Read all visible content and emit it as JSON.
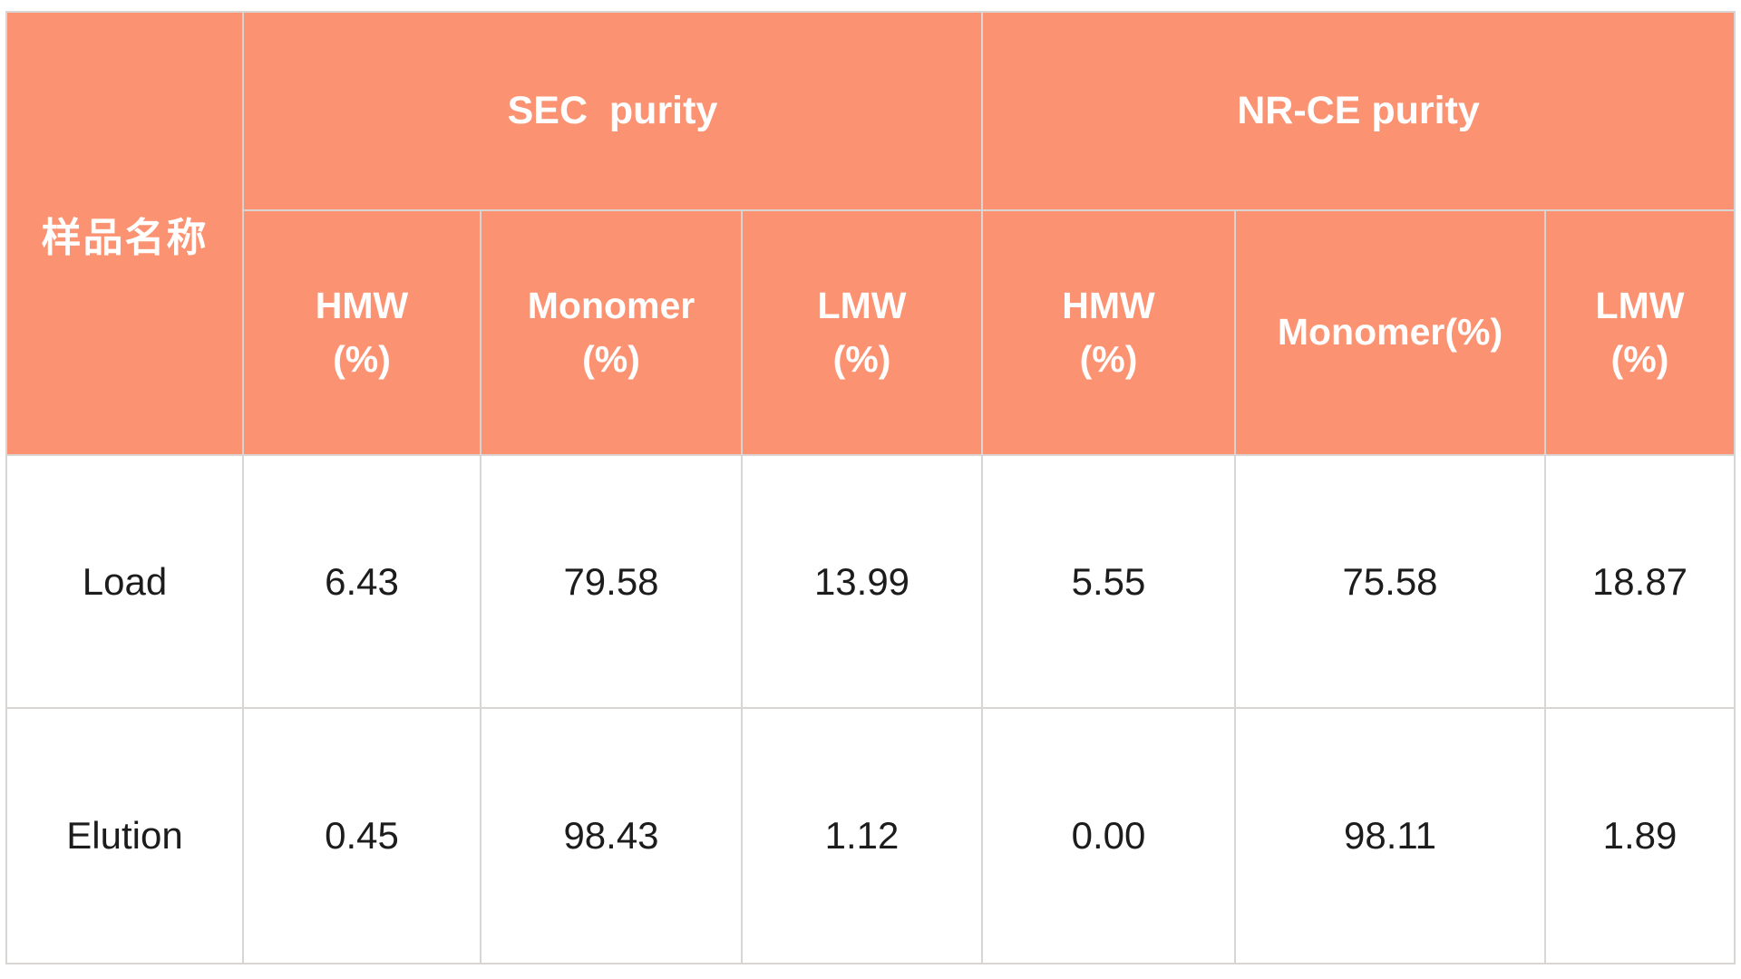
{
  "chart_data": {
    "type": "table",
    "corner_header": "样品名称",
    "column_groups": [
      {
        "label": "SEC  purity",
        "span": 3
      },
      {
        "label": "NR-CE purity",
        "span": 3
      }
    ],
    "columns": [
      "HMW\n(%)",
      "Monomer\n(%)",
      "LMW\n(%)",
      "HMW\n(%)",
      "Monomer(%)",
      "LMW\n(%)"
    ],
    "rows": [
      {
        "name": "Load",
        "values": [
          "6.43",
          "79.58",
          "13.99",
          "5.55",
          "75.58",
          "18.87"
        ]
      },
      {
        "name": "Elution",
        "values": [
          "0.45",
          "98.43",
          "1.12",
          "0.00",
          "98.11",
          "1.89"
        ]
      }
    ],
    "layout_hints": {
      "header_rows": 2,
      "grid_on": true
    },
    "colors": {
      "header_bg": "#FB9372",
      "header_text": "#FFFFFF",
      "grid_line": "#D8D5D2",
      "data_bg": "#FFFFFF",
      "data_text": "#1C1C1C",
      "page_bg": "#FFFFFF"
    }
  }
}
